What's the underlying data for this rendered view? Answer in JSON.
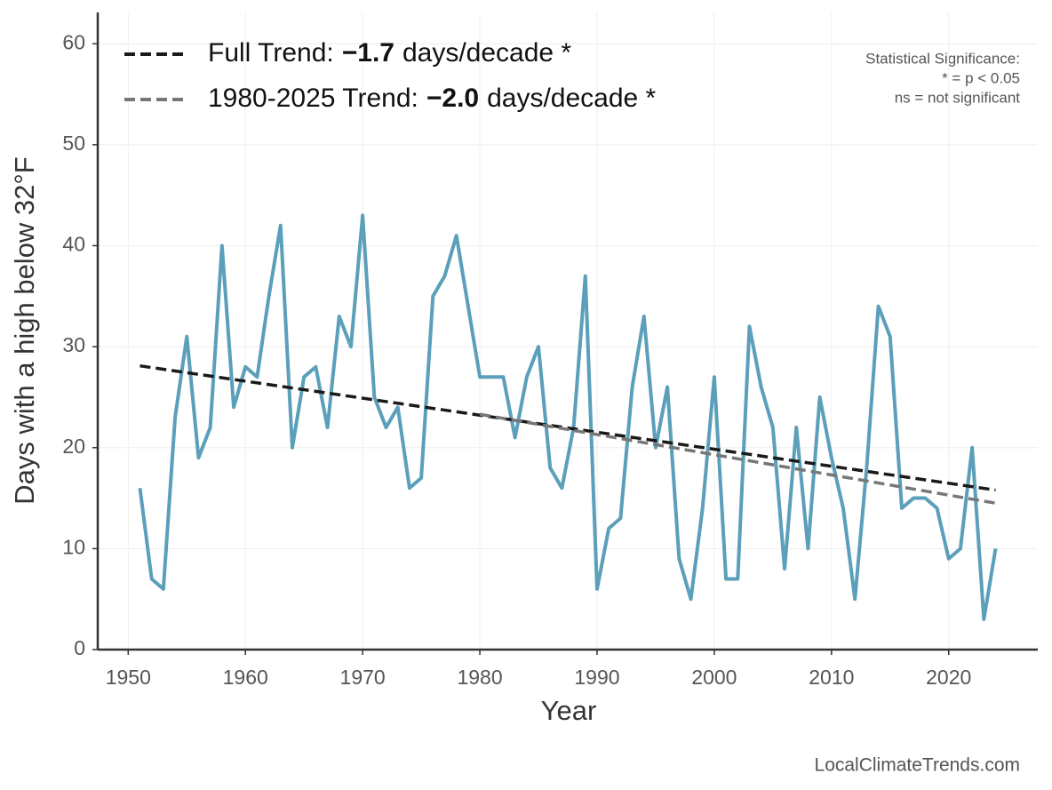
{
  "chart_data": {
    "type": "line",
    "x_label": "Year",
    "y_label": "Days with a high below 32°F",
    "xlim": [
      1947.4,
      2027.6
    ],
    "xticks": [
      1950,
      1960,
      1970,
      1980,
      1990,
      2000,
      2010,
      2020
    ],
    "ylim": [
      0,
      63.1
    ],
    "yticks": [
      0,
      10,
      20,
      30,
      40,
      50,
      60
    ],
    "grid": true,
    "legend_position": "upper left",
    "series": [
      {
        "color": "#5b9fba",
        "x": [
          1951,
          1952,
          1953,
          1954,
          1955,
          1956,
          1957,
          1958,
          1959,
          1960,
          1961,
          1962,
          1963,
          1964,
          1965,
          1966,
          1967,
          1968,
          1969,
          1970,
          1971,
          1972,
          1973,
          1974,
          1975,
          1976,
          1977,
          1978,
          1979,
          1980,
          1981,
          1982,
          1983,
          1984,
          1985,
          1986,
          1987,
          1988,
          1989,
          1990,
          1991,
          1992,
          1993,
          1994,
          1995,
          1996,
          1997,
          1998,
          1999,
          2000,
          2001,
          2002,
          2003,
          2004,
          2005,
          2006,
          2007,
          2008,
          2009,
          2010,
          2011,
          2012,
          2013,
          2014,
          2015,
          2016,
          2017,
          2018,
          2019,
          2020,
          2021,
          2022,
          2023,
          2024
        ],
        "values": [
          16,
          7,
          6,
          23,
          31,
          19,
          22,
          40,
          24,
          28,
          27,
          35,
          42,
          20,
          27,
          28,
          22,
          33,
          30,
          43,
          25,
          22,
          24,
          16,
          17,
          35,
          37,
          41,
          34,
          27,
          27,
          27,
          21,
          27,
          30,
          18,
          16,
          22,
          37,
          6,
          12,
          13,
          26,
          33,
          20,
          26,
          9,
          5,
          14,
          27,
          7,
          7,
          32,
          26,
          22,
          8,
          22,
          10,
          25,
          19,
          14,
          5,
          18,
          34,
          31,
          14,
          15,
          15,
          14,
          9,
          10,
          20,
          3,
          10
        ]
      },
      {
        "color": "#1a1a1a",
        "dashed": true,
        "legend_parts": [
          "Full Trend:",
          "−1.7",
          "days/decade *"
        ],
        "x": [
          1951,
          2024
        ],
        "values": [
          28.1,
          15.8
        ]
      },
      {
        "color": "#777777",
        "dashed": true,
        "legend_parts": [
          "1980-2025 Trend:",
          "−2.0",
          "days/decade *"
        ],
        "x": [
          1980,
          2024
        ],
        "values": [
          23.3,
          14.5
        ]
      }
    ],
    "annotations": [
      "Statistical Significance:",
      "* = p < 0.05",
      "ns = not significant"
    ],
    "source": "LocalClimateTrends.com"
  }
}
